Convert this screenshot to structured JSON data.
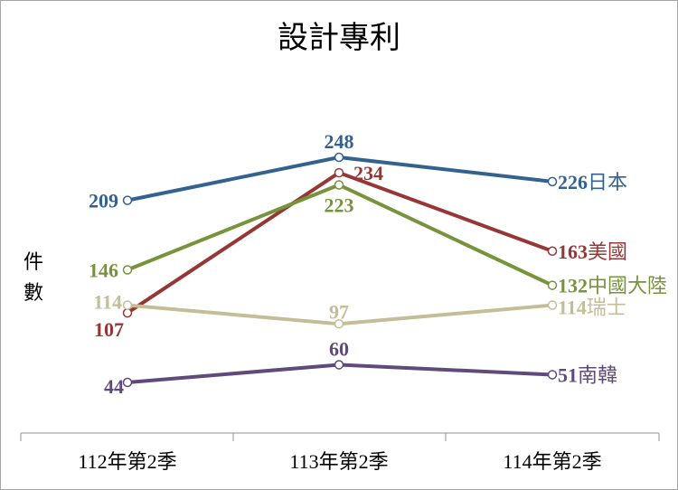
{
  "chart_data": {
    "type": "line",
    "title": "設計專利",
    "ylabel": "件數",
    "categories": [
      "112年第2季",
      "113年第2季",
      "114年第2季"
    ],
    "ylim": [
      0,
      260
    ],
    "grid": false,
    "series": [
      {
        "name": "日本",
        "values": [
          209,
          248,
          226
        ],
        "color": "#33628f"
      },
      {
        "name": "美國",
        "values": [
          107,
          234,
          163
        ],
        "color": "#953735"
      },
      {
        "name": "中國大陸",
        "values": [
          146,
          223,
          132
        ],
        "color": "#77933c"
      },
      {
        "name": "瑞士",
        "values": [
          114,
          97,
          114
        ],
        "color": "#c4bd97"
      },
      {
        "name": "南韓",
        "values": [
          44,
          60,
          51
        ],
        "color": "#604a7b"
      }
    ]
  }
}
